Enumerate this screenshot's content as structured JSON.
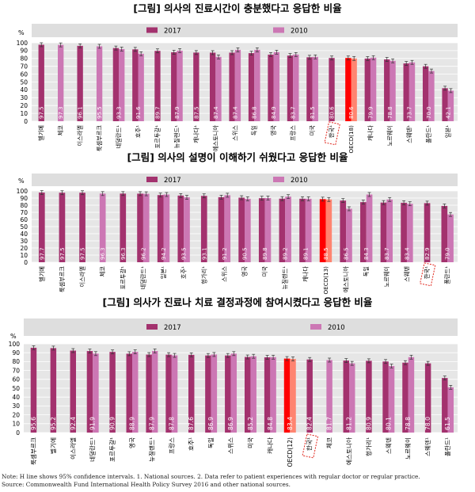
{
  "legend": {
    "series_2017": "2017",
    "series_2010": "2010"
  },
  "colors": {
    "series_2017": "#a3326e",
    "series_2010": "#cc77b4",
    "oecd_2017": "#ff0000",
    "oecd_2010": "#ff8470",
    "panel_bg": "#e6e6e6",
    "legend_bg": "#dedede",
    "korea_box": "#e0251b"
  },
  "chart_data": [
    {
      "type": "bar",
      "title": "[그림] 의사의 진료시간이 충분했다고 응답한 비율",
      "ylabel": "%",
      "ylim": [
        0,
        100
      ],
      "yticks": [
        "0",
        "10",
        "20",
        "30",
        "40",
        "50",
        "60",
        "70",
        "80",
        "90",
        "100"
      ],
      "grid": true,
      "legend_position": "top",
      "categories": [
        "벨기에",
        "체코",
        "이스라엘",
        "룩셈부르크",
        "네덜란드¹",
        "호주¹",
        "포르투갈¹",
        "뉴질랜드¹",
        "캐나다¹",
        "에스토니아",
        "스위스",
        "독일",
        "영국",
        "프랑스",
        "미국",
        "한국¹",
        "OECD(18)",
        "캐나다",
        "노르웨이",
        "스웨덴¹",
        "폴란드¹",
        "일본¹"
      ],
      "category_labels": [
        "벨기에",
        "체코",
        "이스라엘",
        "룩셈부르크",
        "네덜란드¹",
        "호주¹",
        "포르투갈¹",
        "뉴질랜드¹",
        "캐나다¹",
        "에스토니아",
        "스위스",
        "독일",
        "영국",
        "프랑스",
        "미국",
        "한국¹",
        "OECD(18)",
        "캐나다",
        "노르웨이",
        "스웨덴¹",
        "폴란드¹",
        "일본¹"
      ],
      "highlight": {
        "korea": 15,
        "oecd": 16
      },
      "series": [
        {
          "name": "2017",
          "values": [
            97.5,
            null,
            96.1,
            null,
            93.3,
            91.6,
            89.7,
            87.9,
            87.5,
            87.4,
            87.4,
            86.8,
            84.9,
            83.7,
            81.5,
            80.6,
            80.6,
            79.9,
            78.8,
            73.7,
            70.0,
            42.1
          ]
        },
        {
          "name": "2010",
          "values": [
            null,
            97.3,
            null,
            95.5,
            92.0,
            86.0,
            null,
            90.0,
            null,
            82.0,
            91.0,
            91.0,
            88.0,
            85.0,
            82.0,
            null,
            80.0,
            81.0,
            77.0,
            75.0,
            64.0,
            39.0
          ]
        }
      ],
      "value_labels": [
        "97.5",
        "97.3",
        "96.1",
        "95.5",
        "93.3",
        "91.6",
        "89.7",
        "87.9",
        "87.5",
        "87.4",
        "87.4",
        "86.8",
        "84.9",
        "83.7",
        "81.5",
        "80.6",
        "80.6",
        "79.9",
        "78.8",
        "73.7",
        "70.0",
        "42.1"
      ]
    },
    {
      "type": "bar",
      "title": "[그림] 의사의 설명이 이해하기 쉬웠다고 응답한 비율",
      "ylabel": "%",
      "ylim": [
        0,
        100
      ],
      "yticks": [
        "0",
        "10",
        "20",
        "30",
        "40",
        "50",
        "60",
        "70",
        "80",
        "90",
        "100"
      ],
      "grid": true,
      "legend_position": "top",
      "categories": [
        "벨기에",
        "룩셈부르크",
        "이스라엘",
        "체코",
        "포르투갈¹",
        "네덜란드¹",
        "일본¹",
        "호주¹",
        "헝가리¹",
        "스위스",
        "영국",
        "미국",
        "뉴질랜드¹",
        "캐나다",
        "OECD(13)",
        "에스토니아",
        "독일",
        "노르웨이",
        "스웨덴",
        "한국¹",
        "폴란드¹"
      ],
      "category_labels": [
        "벨기에",
        "룩셈부르크",
        "이스라엘",
        "체코",
        "포르투갈¹",
        "네덜란드¹",
        "일본¹",
        "호주¹",
        "헝가리¹",
        "스위스",
        "영국",
        "미국",
        "뉴질랜드¹",
        "캐나다",
        "OECD(13)",
        "에스토니아",
        "독일",
        "노르웨이",
        "스웨덴",
        "한국¹",
        "폴란드¹"
      ],
      "highlight": {
        "korea": 19,
        "oecd": 14
      },
      "series": [
        {
          "name": "2017",
          "values": [
            97.7,
            97.5,
            97.5,
            null,
            96.3,
            96.2,
            94.2,
            93.5,
            93.1,
            91.2,
            90.5,
            89.8,
            89.2,
            89.1,
            88.5,
            86.5,
            84.3,
            83.7,
            83.4,
            82.9,
            79.0
          ]
        },
        {
          "name": "2010",
          "values": [
            null,
            null,
            null,
            96.3,
            null,
            96.0,
            95.0,
            91.0,
            null,
            94.0,
            89.0,
            90.0,
            92.0,
            89.0,
            88.0,
            75.0,
            95.0,
            88.0,
            82.0,
            null,
            67.0
          ]
        }
      ],
      "value_labels": [
        "97.7",
        "97.5",
        "97.5",
        "96.3",
        "96.3",
        "96.2",
        "94.2",
        "93.5",
        "93.1",
        "91.2",
        "90.5",
        "89.8",
        "89.2",
        "89.1",
        "88.5",
        "86.5",
        "84.3",
        "83.7",
        "83.4",
        "82.9",
        "79.0"
      ]
    },
    {
      "type": "bar",
      "title": "[그림] 의사가 진료나 치료 결정과정에 참여시켰다고 응답한 비율",
      "ylabel": "%",
      "ylim": [
        0,
        100
      ],
      "yticks": [
        "0",
        "10",
        "20",
        "30",
        "40",
        "50",
        "60",
        "70",
        "80",
        "90",
        "100"
      ],
      "grid": true,
      "legend_position": "top",
      "categories": [
        "룩셈부르크",
        "벨기에",
        "이스라엘",
        "네덜란드¹",
        "포르투갈¹",
        "영국",
        "뉴질랜드¹",
        "프랑스",
        "호주¹",
        "독일",
        "스위스",
        "미국",
        "캐나다",
        "OECD(12)",
        "한국¹",
        "체코",
        "에스토니아",
        "헝가리¹",
        "스웨덴",
        "노르웨이",
        "스웨덴¹",
        "폴란드¹"
      ],
      "category_labels": [
        "룩셈부르크",
        "벨기에",
        "이스라엘",
        "네덜란드¹",
        "포르투갈¹",
        "영국",
        "뉴질랜드¹",
        "프랑스",
        "호주¹",
        "독일",
        "스위스",
        "미국",
        "캐나다",
        "OECD(12)",
        "한국¹",
        "체코",
        "에스토니아",
        "헝가리¹",
        "스웨덴",
        "노르웨이",
        "스웨덴¹",
        "폴란드¹"
      ],
      "highlight": {
        "korea": 14,
        "oecd": 13
      },
      "series": [
        {
          "name": "2017",
          "values": [
            95.6,
            95.2,
            92.4,
            91.9,
            90.9,
            88.9,
            87.9,
            87.8,
            87.6,
            86.9,
            86.9,
            85.2,
            84.8,
            83.4,
            82.4,
            null,
            81.2,
            80.9,
            80.1,
            78.8,
            78.0,
            61.5
          ]
        },
        {
          "name": "2010",
          "values": [
            null,
            null,
            null,
            89.0,
            null,
            91.0,
            92.0,
            87.0,
            null,
            88.0,
            89.0,
            86.0,
            85.0,
            83.0,
            null,
            81.7,
            78.0,
            null,
            75.0,
            85.0,
            null,
            51.0
          ]
        }
      ],
      "value_labels": [
        "95.6",
        "95.2",
        "92.4",
        "91.9",
        "90.9",
        "88.9",
        "87.9",
        "87.8",
        "87.6",
        "86.9",
        "86.9",
        "85.2",
        "84.8",
        "83.4",
        "82.4",
        "81.7",
        "81.2",
        "80.9",
        "80.1",
        "78.8",
        "78.0",
        "61.5"
      ]
    }
  ],
  "footnote": {
    "line1": "Note: H line shows 95% confidence intervals. 1. National sources. 2. Data refer to patient experiences with regular doctor or regular practice.",
    "line2": "Source: Commonwealth Fund International Health Policy Survey 2016 and other national sources."
  }
}
